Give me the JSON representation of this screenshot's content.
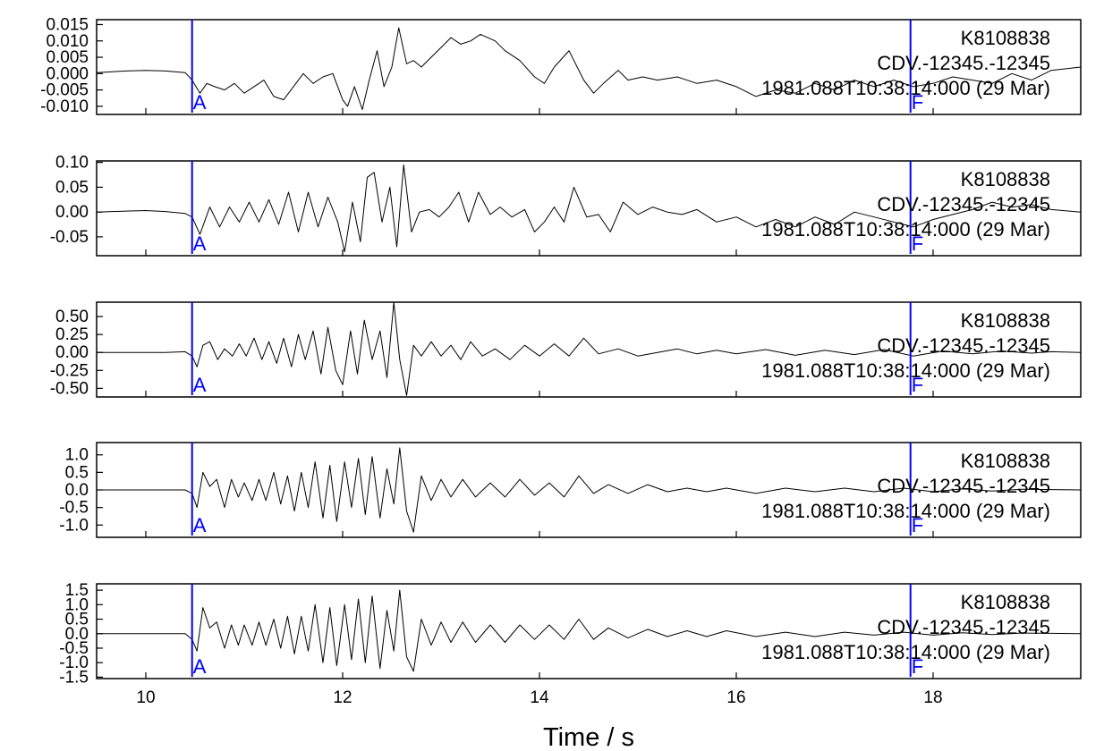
{
  "chart_data": {
    "type": "line",
    "xlabel": "Time / s",
    "xlim": [
      9.5,
      19.5
    ],
    "xticks": [
      10,
      12,
      14,
      16,
      18
    ],
    "xtick_labels": [
      "10",
      "12",
      "14",
      "16",
      "18"
    ],
    "grid": false,
    "picks": [
      {
        "label": "A",
        "time": 10.47,
        "color": "#0000ff"
      },
      {
        "label": "F",
        "time": 17.77,
        "color": "#0000ff"
      }
    ],
    "panels": [
      {
        "station": "K8108838",
        "channel": "CDV.-12345.-12345",
        "start": "1981.088T10:38:14:000 (29 Mar)",
        "ylim": [
          -0.0125,
          0.0165
        ],
        "yticks": [
          -0.01,
          -0.005,
          0.0,
          0.005,
          0.01,
          0.015
        ],
        "ytick_labels": [
          "-0.010",
          "-0.005",
          "0.000",
          "0.005",
          "0.010",
          "0.015"
        ],
        "x": [
          9.5,
          9.8,
          10.0,
          10.2,
          10.4,
          10.47,
          10.55,
          10.62,
          10.7,
          10.8,
          10.9,
          11.0,
          11.1,
          11.2,
          11.3,
          11.4,
          11.5,
          11.6,
          11.7,
          11.8,
          11.9,
          12.0,
          12.05,
          12.12,
          12.2,
          12.27,
          12.35,
          12.42,
          12.5,
          12.57,
          12.65,
          12.72,
          12.8,
          12.9,
          13.0,
          13.1,
          13.2,
          13.3,
          13.4,
          13.55,
          13.65,
          13.8,
          13.95,
          14.05,
          14.15,
          14.3,
          14.45,
          14.55,
          14.65,
          14.8,
          14.9,
          15.05,
          15.2,
          15.4,
          15.6,
          15.8,
          16.0,
          16.2,
          16.4,
          16.6,
          16.8,
          17.0,
          17.2,
          17.4,
          17.6,
          17.8,
          18.0,
          18.2,
          18.4,
          18.6,
          18.8,
          19.0,
          19.2,
          19.5
        ],
        "y": [
          0.0003,
          0.0008,
          0.001,
          0.0008,
          0.0003,
          -0.002,
          -0.006,
          -0.003,
          -0.004,
          -0.005,
          -0.003,
          -0.006,
          -0.004,
          -0.002,
          -0.007,
          -0.008,
          -0.004,
          0.0,
          -0.003,
          -0.001,
          0.0,
          -0.008,
          -0.01,
          -0.004,
          -0.011,
          -0.002,
          0.007,
          -0.004,
          0.002,
          0.014,
          0.003,
          0.004,
          0.002,
          0.005,
          0.008,
          0.011,
          0.009,
          0.01,
          0.012,
          0.01,
          0.007,
          0.004,
          -0.001,
          -0.003,
          0.002,
          0.007,
          -0.002,
          -0.006,
          -0.003,
          0.001,
          -0.002,
          -0.001,
          -0.002,
          -0.001,
          -0.003,
          -0.002,
          -0.004,
          -0.007,
          -0.005,
          -0.006,
          -0.003,
          -0.005,
          -0.002,
          -0.004,
          -0.002,
          -0.004,
          -0.003,
          -0.001,
          -0.002,
          -0.003,
          0.0,
          -0.002,
          0.001,
          0.002
        ]
      },
      {
        "station": "K8108838",
        "channel": "CDV.-12345.-12345",
        "start": "1981.088T10:38:14:000 (29 Mar)",
        "ylim": [
          -0.088,
          0.103
        ],
        "yticks": [
          -0.05,
          0.0,
          0.05,
          0.1
        ],
        "ytick_labels": [
          "-0.05",
          "0.00",
          "0.05",
          "0.10"
        ],
        "x": [
          9.5,
          9.8,
          10.0,
          10.2,
          10.4,
          10.47,
          10.55,
          10.65,
          10.75,
          10.85,
          10.95,
          11.05,
          11.15,
          11.25,
          11.35,
          11.45,
          11.55,
          11.65,
          11.75,
          11.85,
          11.95,
          12.02,
          12.1,
          12.18,
          12.25,
          12.32,
          12.4,
          12.48,
          12.55,
          12.62,
          12.7,
          12.78,
          12.88,
          12.98,
          13.08,
          13.18,
          13.28,
          13.38,
          13.5,
          13.6,
          13.72,
          13.85,
          13.95,
          14.05,
          14.15,
          14.25,
          14.35,
          14.48,
          14.6,
          14.72,
          14.85,
          15.0,
          15.15,
          15.3,
          15.45,
          15.6,
          15.8,
          16.0,
          16.2,
          16.4,
          16.6,
          16.8,
          17.0,
          17.2,
          17.4,
          17.6,
          17.8,
          18.0,
          18.2,
          18.4,
          18.6,
          18.8,
          19.0,
          19.2,
          19.5
        ],
        "y": [
          0.0,
          0.002,
          0.003,
          0.001,
          -0.003,
          -0.01,
          -0.045,
          0.01,
          -0.03,
          0.01,
          -0.02,
          0.02,
          -0.02,
          0.025,
          -0.025,
          0.04,
          -0.04,
          0.04,
          -0.03,
          0.03,
          -0.02,
          -0.08,
          0.02,
          -0.06,
          0.07,
          0.08,
          -0.02,
          0.05,
          -0.07,
          0.095,
          -0.04,
          0.0,
          0.005,
          -0.01,
          0.01,
          0.04,
          -0.02,
          0.04,
          -0.005,
          0.01,
          -0.01,
          0.005,
          -0.04,
          -0.02,
          0.01,
          -0.02,
          0.05,
          -0.01,
          -0.005,
          -0.04,
          0.02,
          -0.005,
          0.01,
          0.0,
          -0.005,
          0.005,
          -0.02,
          -0.01,
          -0.03,
          -0.015,
          -0.03,
          -0.01,
          -0.025,
          0.0,
          -0.01,
          -0.02,
          -0.03,
          -0.015,
          -0.005,
          0.005,
          0.02,
          0.01,
          0.015,
          0.005,
          0.0
        ]
      },
      {
        "station": "K8108838",
        "channel": "CDV.-12345.-12345",
        "start": "1981.088T10:38:14:000 (29 Mar)",
        "ylim": [
          -0.62,
          0.7
        ],
        "yticks": [
          -0.5,
          -0.25,
          0.0,
          0.25,
          0.5
        ],
        "ytick_labels": [
          "-0.50",
          "-0.25",
          "0.00",
          "0.25",
          "0.50"
        ],
        "x": [
          9.5,
          9.9,
          10.2,
          10.4,
          10.47,
          10.52,
          10.58,
          10.65,
          10.73,
          10.8,
          10.88,
          10.95,
          11.02,
          11.1,
          11.18,
          11.25,
          11.33,
          11.4,
          11.48,
          11.55,
          11.62,
          11.7,
          11.78,
          11.85,
          11.93,
          12.0,
          12.08,
          12.15,
          12.22,
          12.3,
          12.38,
          12.45,
          12.52,
          12.58,
          12.65,
          12.72,
          12.8,
          12.9,
          13.0,
          13.1,
          13.2,
          13.3,
          13.42,
          13.55,
          13.7,
          13.85,
          14.0,
          14.15,
          14.3,
          14.45,
          14.6,
          14.8,
          15.0,
          15.2,
          15.4,
          15.6,
          15.8,
          16.0,
          16.3,
          16.6,
          16.9,
          17.2,
          17.5,
          17.8,
          18.1,
          18.4,
          18.7,
          19.0,
          19.2,
          19.5
        ],
        "y": [
          0.0,
          0.0,
          0.0,
          0.01,
          -0.05,
          -0.2,
          0.1,
          0.15,
          -0.1,
          0.05,
          -0.05,
          0.12,
          -0.05,
          0.2,
          -0.1,
          0.15,
          -0.15,
          0.2,
          -0.2,
          0.25,
          -0.1,
          0.3,
          -0.3,
          0.35,
          -0.25,
          -0.45,
          0.3,
          -0.3,
          0.45,
          -0.1,
          0.3,
          -0.35,
          0.7,
          -0.1,
          -0.6,
          0.1,
          -0.05,
          0.15,
          -0.05,
          0.1,
          -0.1,
          0.15,
          -0.05,
          0.05,
          -0.1,
          0.1,
          -0.05,
          0.12,
          -0.05,
          0.2,
          -0.02,
          0.05,
          -0.05,
          0.0,
          0.05,
          -0.02,
          0.03,
          -0.02,
          0.04,
          -0.04,
          0.03,
          -0.03,
          0.04,
          -0.05,
          0.02,
          -0.02,
          0.02,
          -0.01,
          0.01,
          0.0
        ]
      },
      {
        "station": "K8108838",
        "channel": "CDV.-12345.-12345",
        "start": "1981.088T10:38:14:000 (29 Mar)",
        "ylim": [
          -1.35,
          1.35
        ],
        "yticks": [
          -1.0,
          -0.5,
          0.0,
          0.5,
          1.0
        ],
        "ytick_labels": [
          "-1.0",
          "-0.5",
          "0.0",
          "0.5",
          "1.0"
        ],
        "x": [
          9.5,
          9.9,
          10.2,
          10.4,
          10.47,
          10.52,
          10.58,
          10.65,
          10.72,
          10.8,
          10.87,
          10.94,
          11.0,
          11.08,
          11.15,
          11.22,
          11.3,
          11.37,
          11.44,
          11.51,
          11.58,
          11.65,
          11.72,
          11.8,
          11.87,
          11.94,
          12.02,
          12.09,
          12.16,
          12.23,
          12.3,
          12.38,
          12.45,
          12.52,
          12.58,
          12.65,
          12.72,
          12.8,
          12.9,
          13.0,
          13.1,
          13.22,
          13.35,
          13.5,
          13.65,
          13.8,
          13.95,
          14.1,
          14.25,
          14.4,
          14.55,
          14.7,
          14.9,
          15.1,
          15.3,
          15.5,
          15.7,
          15.9,
          16.2,
          16.5,
          16.8,
          17.1,
          17.4,
          17.7,
          18.0,
          18.3,
          18.6,
          18.9,
          19.2,
          19.5
        ],
        "y": [
          0.0,
          0.0,
          0.0,
          0.0,
          -0.1,
          -0.5,
          0.5,
          0.1,
          0.3,
          -0.5,
          0.3,
          -0.2,
          0.2,
          -0.3,
          0.3,
          -0.3,
          0.5,
          -0.4,
          0.4,
          -0.6,
          0.5,
          -0.5,
          0.8,
          -0.8,
          0.7,
          -0.9,
          0.8,
          -0.5,
          0.9,
          -0.7,
          0.95,
          -0.8,
          0.6,
          -0.4,
          1.2,
          -0.6,
          -1.2,
          0.4,
          -0.3,
          0.3,
          -0.2,
          0.3,
          -0.2,
          0.2,
          -0.2,
          0.3,
          -0.15,
          0.2,
          -0.2,
          0.4,
          -0.1,
          0.15,
          -0.1,
          0.15,
          -0.05,
          0.05,
          -0.05,
          0.05,
          -0.1,
          0.05,
          -0.05,
          0.05,
          -0.05,
          0.05,
          -0.05,
          0.03,
          -0.03,
          0.02,
          0.01,
          0.0
        ]
      },
      {
        "station": "K8108838",
        "channel": "CDV.-12345.-12345",
        "start": "1981.088T10:38:14:000 (29 Mar)",
        "ylim": [
          -1.55,
          1.72
        ],
        "yticks": [
          -1.5,
          -1.0,
          -0.5,
          0.0,
          0.5,
          1.0,
          1.5
        ],
        "ytick_labels": [
          "-1.5",
          "-1.0",
          "-0.5",
          "0.0",
          "0.5",
          "1.0",
          "1.5"
        ],
        "x": [
          9.5,
          9.9,
          10.2,
          10.4,
          10.47,
          10.52,
          10.58,
          10.65,
          10.72,
          10.8,
          10.87,
          10.94,
          11.0,
          11.08,
          11.15,
          11.22,
          11.3,
          11.37,
          11.44,
          11.51,
          11.58,
          11.65,
          11.72,
          11.8,
          11.87,
          11.94,
          12.02,
          12.09,
          12.16,
          12.23,
          12.3,
          12.38,
          12.45,
          12.52,
          12.58,
          12.65,
          12.72,
          12.8,
          12.9,
          13.0,
          13.1,
          13.22,
          13.35,
          13.5,
          13.65,
          13.8,
          13.95,
          14.1,
          14.25,
          14.4,
          14.55,
          14.7,
          14.9,
          15.1,
          15.3,
          15.5,
          15.7,
          15.9,
          16.2,
          16.5,
          16.8,
          17.1,
          17.4,
          17.7,
          18.0,
          18.3,
          18.6,
          18.9,
          19.2,
          19.5
        ],
        "y": [
          0.0,
          0.0,
          0.0,
          0.0,
          -0.2,
          -0.6,
          0.9,
          0.2,
          0.4,
          -0.5,
          0.3,
          -0.4,
          0.3,
          -0.4,
          0.4,
          -0.4,
          0.5,
          -0.5,
          0.6,
          -0.7,
          0.6,
          -0.6,
          1.0,
          -1.0,
          0.9,
          -1.1,
          1.0,
          -0.9,
          1.2,
          -1.0,
          1.3,
          -1.2,
          0.8,
          -0.6,
          1.5,
          -0.8,
          -1.3,
          0.5,
          -0.4,
          0.4,
          -0.3,
          0.4,
          -0.3,
          0.3,
          -0.3,
          0.3,
          -0.2,
          0.3,
          -0.2,
          0.5,
          -0.2,
          0.2,
          -0.15,
          0.15,
          -0.1,
          0.1,
          -0.1,
          0.1,
          -0.1,
          0.05,
          -0.1,
          0.05,
          -0.05,
          0.05,
          -0.05,
          0.03,
          -0.03,
          0.02,
          0.01,
          0.0
        ]
      }
    ]
  }
}
